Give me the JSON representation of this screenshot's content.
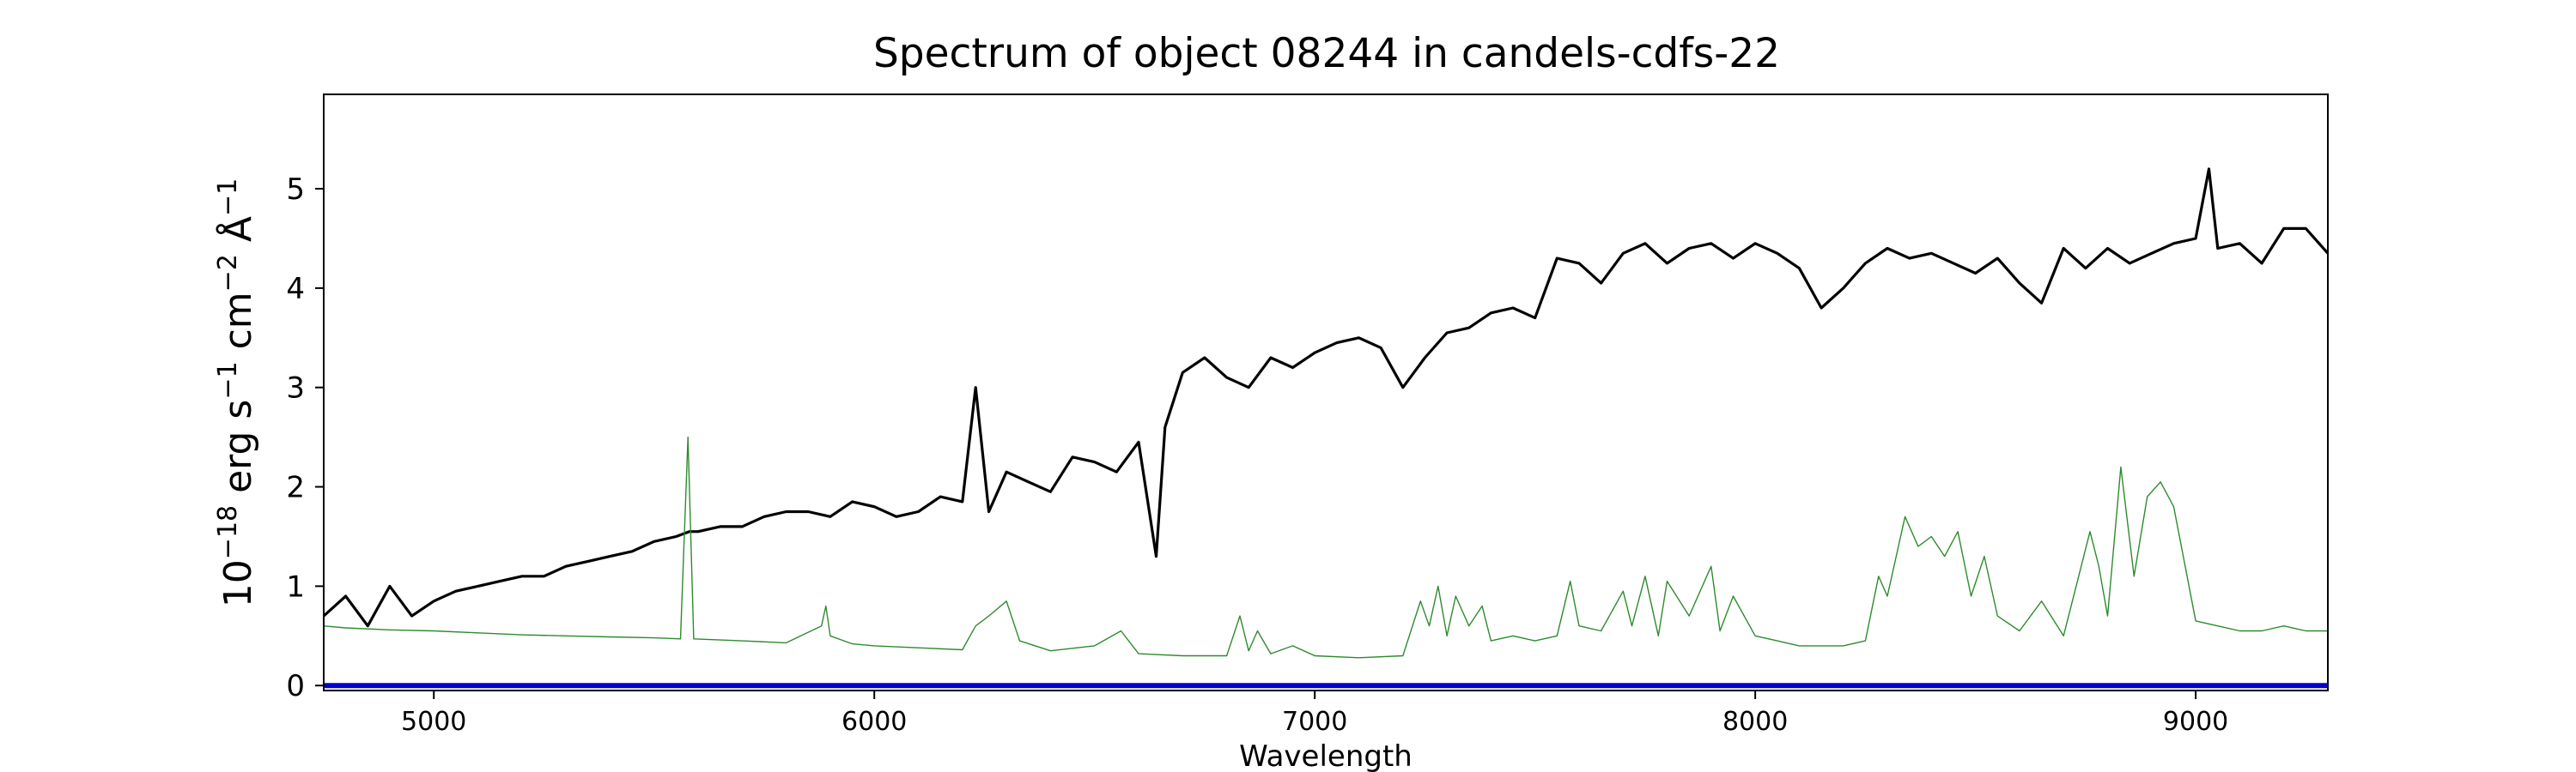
{
  "chart_data": {
    "type": "line",
    "title": "Spectrum of object 08244 in candels-cdfs-22",
    "xlabel": "Wavelength",
    "ylabel_base": "10",
    "ylabel_exp": "−18",
    "ylabel_units": [
      {
        "text": " erg s",
        "sup": "−1"
      },
      {
        "text": " cm",
        "sup": "−2"
      },
      {
        "text": " Å",
        "sup": "−1"
      }
    ],
    "xlim": [
      4750,
      9300
    ],
    "ylim": [
      -0.05,
      5.95
    ],
    "xticks": [
      5000,
      6000,
      7000,
      8000,
      9000
    ],
    "xtick_labels": [
      "5000",
      "6000",
      "7000",
      "8000",
      "9000"
    ],
    "yticks": [
      0,
      1,
      2,
      3,
      4,
      5
    ],
    "ytick_labels": [
      "0",
      "1",
      "2",
      "3",
      "4",
      "5"
    ],
    "grid": false,
    "series": [
      {
        "role": "flux",
        "color": "#000000",
        "x": [
          4750,
          4800,
          4850,
          4900,
          4950,
          5000,
          5050,
          5100,
          5150,
          5200,
          5250,
          5300,
          5350,
          5400,
          5450,
          5500,
          5550,
          5580,
          5600,
          5650,
          5700,
          5750,
          5800,
          5850,
          5900,
          5950,
          6000,
          6050,
          6100,
          6150,
          6200,
          6230,
          6260,
          6300,
          6350,
          6400,
          6450,
          6500,
          6550,
          6600,
          6640,
          6660,
          6700,
          6750,
          6800,
          6850,
          6900,
          6950,
          7000,
          7050,
          7100,
          7150,
          7200,
          7250,
          7300,
          7350,
          7400,
          7450,
          7500,
          7550,
          7600,
          7650,
          7700,
          7750,
          7800,
          7850,
          7900,
          7950,
          8000,
          8050,
          8100,
          8150,
          8200,
          8250,
          8300,
          8350,
          8400,
          8450,
          8500,
          8550,
          8600,
          8650,
          8700,
          8750,
          8800,
          8850,
          8900,
          8950,
          9000,
          9030,
          9050,
          9100,
          9150,
          9200,
          9250,
          9300
        ],
        "y": [
          0.7,
          0.9,
          0.6,
          1.0,
          0.7,
          0.85,
          0.95,
          1.0,
          1.05,
          1.1,
          1.1,
          1.2,
          1.25,
          1.3,
          1.35,
          1.45,
          1.5,
          1.55,
          1.55,
          1.6,
          1.6,
          1.7,
          1.75,
          1.75,
          1.7,
          1.85,
          1.8,
          1.7,
          1.75,
          1.9,
          1.85,
          3.0,
          1.75,
          2.15,
          2.05,
          1.95,
          2.3,
          2.25,
          2.15,
          2.45,
          1.3,
          2.6,
          3.15,
          3.3,
          3.1,
          3.0,
          3.3,
          3.2,
          3.35,
          3.45,
          3.5,
          3.4,
          3.0,
          3.3,
          3.55,
          3.6,
          3.75,
          3.8,
          3.7,
          4.3,
          4.25,
          4.05,
          4.35,
          4.45,
          4.25,
          4.4,
          4.45,
          4.3,
          4.45,
          4.35,
          4.2,
          3.8,
          4.0,
          4.25,
          4.4,
          4.3,
          4.35,
          4.25,
          4.15,
          4.3,
          4.05,
          3.85,
          4.4,
          4.2,
          4.4,
          4.25,
          4.35,
          4.45,
          4.5,
          5.2,
          4.4,
          4.45,
          4.25,
          4.6,
          4.6,
          4.35
        ]
      },
      {
        "role": "sky",
        "color": "#2e8b2e",
        "x": [
          4750,
          4800,
          4900,
          5000,
          5100,
          5200,
          5300,
          5400,
          5500,
          5560,
          5577,
          5590,
          5700,
          5800,
          5880,
          5890,
          5900,
          5950,
          6000,
          6100,
          6200,
          6230,
          6260,
          6300,
          6330,
          6400,
          6500,
          6560,
          6600,
          6700,
          6800,
          6830,
          6850,
          6870,
          6900,
          6950,
          7000,
          7100,
          7200,
          7240,
          7260,
          7280,
          7300,
          7320,
          7350,
          7380,
          7400,
          7450,
          7500,
          7550,
          7580,
          7600,
          7650,
          7700,
          7720,
          7750,
          7780,
          7800,
          7850,
          7900,
          7920,
          7950,
          8000,
          8050,
          8100,
          8200,
          8250,
          8280,
          8300,
          8340,
          8370,
          8400,
          8430,
          8460,
          8490,
          8520,
          8550,
          8600,
          8650,
          8700,
          8760,
          8780,
          8800,
          8830,
          8860,
          8890,
          8920,
          8950,
          9000,
          9050,
          9100,
          9150,
          9200,
          9250,
          9300
        ],
        "y": [
          0.6,
          0.58,
          0.56,
          0.55,
          0.53,
          0.51,
          0.5,
          0.49,
          0.48,
          0.47,
          2.5,
          0.47,
          0.45,
          0.43,
          0.6,
          0.8,
          0.5,
          0.42,
          0.4,
          0.38,
          0.36,
          0.6,
          0.7,
          0.85,
          0.45,
          0.35,
          0.4,
          0.55,
          0.32,
          0.3,
          0.3,
          0.7,
          0.35,
          0.55,
          0.32,
          0.4,
          0.3,
          0.28,
          0.3,
          0.85,
          0.6,
          1.0,
          0.5,
          0.9,
          0.6,
          0.8,
          0.45,
          0.5,
          0.45,
          0.5,
          1.05,
          0.6,
          0.55,
          0.95,
          0.6,
          1.1,
          0.5,
          1.05,
          0.7,
          1.2,
          0.55,
          0.9,
          0.5,
          0.45,
          0.4,
          0.4,
          0.45,
          1.1,
          0.9,
          1.7,
          1.4,
          1.5,
          1.3,
          1.55,
          0.9,
          1.3,
          0.7,
          0.55,
          0.85,
          0.5,
          1.55,
          1.2,
          0.7,
          2.2,
          1.1,
          1.9,
          2.05,
          1.8,
          0.65,
          0.6,
          0.55,
          0.55,
          0.6,
          0.55,
          0.55
        ]
      },
      {
        "role": "zero-level",
        "color": "#0000cc",
        "x": [
          4750,
          9300
        ],
        "y": [
          0,
          0
        ]
      }
    ]
  }
}
